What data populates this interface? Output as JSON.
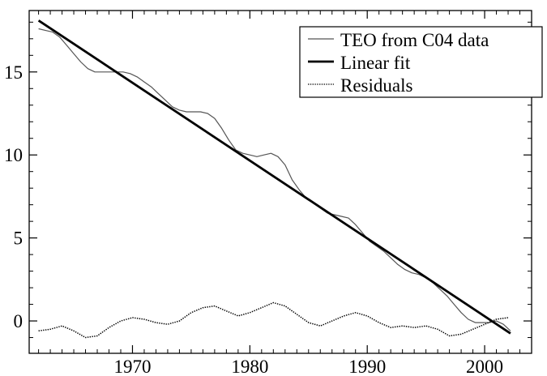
{
  "chart_data": {
    "type": "line",
    "title": "",
    "xlabel": "",
    "ylabel": "",
    "xlim": [
      1961.2,
      2004.0
    ],
    "ylim": [
      -1.95,
      18.7
    ],
    "xticks": [
      1970,
      1980,
      1990,
      2000
    ],
    "yticks": [
      0,
      5,
      10,
      15
    ],
    "grid": false,
    "legend_position": "top-right",
    "series": [
      {
        "name": "TEO from C04 data",
        "style": "thin-solid",
        "color": "#555555",
        "x": [
          1962.0,
          1962.6,
          1963.2,
          1963.8,
          1964.4,
          1965.0,
          1965.6,
          1966.2,
          1966.8,
          1967.4,
          1968.0,
          1968.6,
          1969.2,
          1969.8,
          1970.4,
          1971.0,
          1971.6,
          1972.2,
          1972.8,
          1973.4,
          1974.0,
          1974.6,
          1975.2,
          1975.8,
          1976.4,
          1977.0,
          1977.6,
          1978.2,
          1978.8,
          1979.4,
          1980.0,
          1980.6,
          1981.2,
          1981.8,
          1982.4,
          1983.0,
          1983.6,
          1984.2,
          1984.8,
          1985.4,
          1986.0,
          1986.6,
          1987.2,
          1987.8,
          1988.4,
          1989.0,
          1989.6,
          1990.2,
          1990.8,
          1991.4,
          1992.0,
          1992.6,
          1993.2,
          1993.8,
          1994.4,
          1995.0,
          1995.6,
          1996.2,
          1996.8,
          1997.4,
          1998.0,
          1998.6,
          1999.2,
          1999.8,
          2000.4,
          2001.0,
          2001.6,
          2002.2
        ],
        "y": [
          17.6,
          17.5,
          17.4,
          17.1,
          16.6,
          16.1,
          15.6,
          15.2,
          15.0,
          15.0,
          15.0,
          15.0,
          15.0,
          14.9,
          14.7,
          14.4,
          14.1,
          13.7,
          13.3,
          12.9,
          12.7,
          12.6,
          12.6,
          12.6,
          12.5,
          12.2,
          11.6,
          10.9,
          10.3,
          10.1,
          10.0,
          9.9,
          10.0,
          10.1,
          9.9,
          9.4,
          8.5,
          7.9,
          7.4,
          7.1,
          6.8,
          6.5,
          6.4,
          6.3,
          6.2,
          5.8,
          5.3,
          4.8,
          4.5,
          4.2,
          3.8,
          3.4,
          3.1,
          2.9,
          2.8,
          2.6,
          2.3,
          1.9,
          1.5,
          1.0,
          0.5,
          0.1,
          -0.1,
          -0.1,
          -0.1,
          0.0,
          -0.2,
          -0.6
        ]
      },
      {
        "name": "Linear fit",
        "style": "thick-solid",
        "color": "#000000",
        "x": [
          1962.0,
          2002.2
        ],
        "y": [
          18.1,
          -0.75
        ]
      },
      {
        "name": "Residuals",
        "style": "dotted",
        "color": "#000000",
        "x": [
          1962.0,
          1963.0,
          1964.0,
          1965.0,
          1966.0,
          1967.0,
          1968.0,
          1969.0,
          1970.0,
          1971.0,
          1972.0,
          1973.0,
          1974.0,
          1975.0,
          1976.0,
          1977.0,
          1978.0,
          1979.0,
          1980.0,
          1981.0,
          1982.0,
          1983.0,
          1984.0,
          1985.0,
          1986.0,
          1987.0,
          1988.0,
          1989.0,
          1990.0,
          1991.0,
          1992.0,
          1993.0,
          1994.0,
          1995.0,
          1996.0,
          1997.0,
          1998.0,
          1999.0,
          2000.0,
          2001.0,
          2002.0
        ],
        "y": [
          -0.6,
          -0.5,
          -0.3,
          -0.6,
          -1.0,
          -0.9,
          -0.4,
          0.0,
          0.2,
          0.1,
          -0.1,
          -0.2,
          0.0,
          0.5,
          0.8,
          0.9,
          0.6,
          0.3,
          0.5,
          0.8,
          1.1,
          0.9,
          0.4,
          -0.1,
          -0.3,
          0.0,
          0.3,
          0.5,
          0.3,
          -0.1,
          -0.4,
          -0.3,
          -0.4,
          -0.3,
          -0.5,
          -0.9,
          -0.8,
          -0.5,
          -0.2,
          0.1,
          0.2
        ]
      }
    ]
  }
}
